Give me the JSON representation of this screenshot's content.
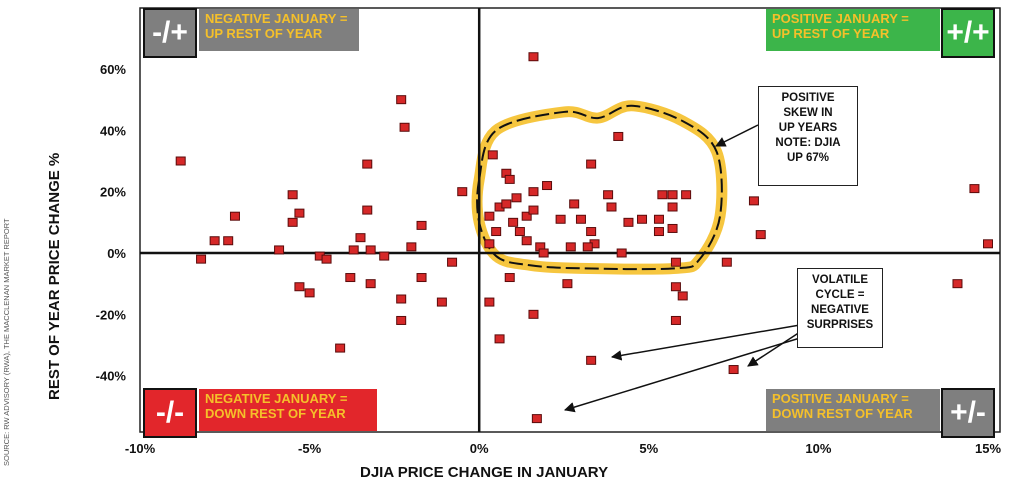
{
  "source_text": "SOURCE: RW ADVISORY (RWA), THE MACCLENAN MARKET REPORT",
  "colors": {
    "marker_fill": "#d62828",
    "marker_stroke": "#5a0c0c",
    "highlight": "#f5c02a",
    "green": "#3cb54a",
    "gray": "#7f7f7f",
    "red": "#e2262b",
    "yellow_text": "#f5c02a"
  },
  "quadrants": {
    "top_left": {
      "badge": "-/+",
      "label": "NEGATIVE JANUARY =\nUP REST OF YEAR"
    },
    "top_right": {
      "badge": "+/+",
      "label": "POSITIVE JANUARY =\nUP REST OF YEAR"
    },
    "bottom_left": {
      "badge": "-/-",
      "label": "NEGATIVE JANUARY =\nDOWN REST OF YEAR"
    },
    "bottom_right": {
      "badge": "+/-",
      "label": "POSITIVE JANUARY =\nDOWN REST OF YEAR"
    }
  },
  "annotations": {
    "skew": "POSITIVE\nSKEW IN\nUP YEARS\nNOTE: DJIA\nUP 67%",
    "volatile": "VOLATILE\nCYCLE =\nNEGATIVE\nSURPRISES"
  },
  "chart_data": {
    "type": "scatter",
    "xlabel": "DJIA PRICE CHANGE IN JANUARY",
    "ylabel": "REST OF YEAR PRICE CHANGE %",
    "xlim": [
      -10,
      15
    ],
    "ylim": [
      -55,
      72
    ],
    "x_ticks": [
      {
        "value": -10,
        "label": "-10%"
      },
      {
        "value": -5,
        "label": "-5%"
      },
      {
        "value": 0,
        "label": "0%"
      },
      {
        "value": 5,
        "label": "5%"
      },
      {
        "value": 10,
        "label": "10%"
      },
      {
        "value": 15,
        "label": "15%"
      }
    ],
    "y_ticks": [
      {
        "value": 60,
        "label": "60%"
      },
      {
        "value": 40,
        "label": "40%"
      },
      {
        "value": 20,
        "label": "20%"
      },
      {
        "value": 0,
        "label": "0%"
      },
      {
        "value": -20,
        "label": "-20%"
      },
      {
        "value": -40,
        "label": "-40%"
      }
    ],
    "grid": false,
    "points": [
      [
        1.6,
        64
      ],
      [
        -2.3,
        50
      ],
      [
        -2.2,
        41
      ],
      [
        -8.8,
        30
      ],
      [
        -3.3,
        29
      ],
      [
        0.4,
        32
      ],
      [
        0.8,
        26
      ],
      [
        0.9,
        24
      ],
      [
        3.3,
        29
      ],
      [
        4.1,
        38
      ],
      [
        -5.5,
        19
      ],
      [
        -0.5,
        20
      ],
      [
        1.1,
        18
      ],
      [
        1.6,
        20
      ],
      [
        2.0,
        22
      ],
      [
        3.8,
        19
      ],
      [
        5.4,
        19
      ],
      [
        5.7,
        19
      ],
      [
        6.1,
        19
      ],
      [
        0.6,
        15
      ],
      [
        0.8,
        16
      ],
      [
        1.4,
        12
      ],
      [
        1.6,
        14
      ],
      [
        2.8,
        16
      ],
      [
        3.9,
        15
      ],
      [
        0.3,
        12
      ],
      [
        4.4,
        10
      ],
      [
        4.8,
        11
      ],
      [
        5.3,
        11
      ],
      [
        5.7,
        15
      ],
      [
        8.1,
        17
      ],
      [
        14.6,
        21
      ],
      [
        -7.2,
        12
      ],
      [
        -5.3,
        13
      ],
      [
        -5.5,
        10
      ],
      [
        -3.3,
        14
      ],
      [
        -1.7,
        9
      ],
      [
        1.0,
        10
      ],
      [
        2.4,
        11
      ],
      [
        3.0,
        11
      ],
      [
        3.3,
        7
      ],
      [
        1.2,
        7
      ],
      [
        5.3,
        7
      ],
      [
        5.7,
        8
      ],
      [
        0.5,
        7
      ],
      [
        -3.7,
        1
      ],
      [
        -3.2,
        1
      ],
      [
        -2.0,
        2
      ],
      [
        -3.5,
        5
      ],
      [
        -7.8,
        4
      ],
      [
        -7.4,
        4
      ],
      [
        -8.2,
        -2
      ],
      [
        -5.9,
        1
      ],
      [
        0.3,
        3
      ],
      [
        1.4,
        4
      ],
      [
        1.8,
        2
      ],
      [
        1.9,
        0
      ],
      [
        2.7,
        2
      ],
      [
        3.4,
        3
      ],
      [
        3.2,
        2
      ],
      [
        4.2,
        0
      ],
      [
        8.3,
        6
      ],
      [
        15.0,
        3
      ],
      [
        -2.8,
        -1
      ],
      [
        -4.7,
        -1
      ],
      [
        -0.8,
        -3
      ],
      [
        -5.3,
        -11
      ],
      [
        -5.0,
        -13
      ],
      [
        -4.5,
        -2
      ],
      [
        -4.1,
        -31
      ],
      [
        -3.8,
        -8
      ],
      [
        -3.2,
        -10
      ],
      [
        -2.3,
        -15
      ],
      [
        -2.3,
        -22
      ],
      [
        -1.7,
        -8
      ],
      [
        -1.1,
        -16
      ],
      [
        0.9,
        -8
      ],
      [
        2.6,
        -10
      ],
      [
        5.8,
        -11
      ],
      [
        6.0,
        -14
      ],
      [
        5.8,
        -22
      ],
      [
        0.3,
        -16
      ],
      [
        0.6,
        -28
      ],
      [
        1.6,
        -20
      ],
      [
        3.3,
        -35
      ],
      [
        7.5,
        -38
      ],
      [
        1.7,
        -54
      ],
      [
        7.3,
        -3
      ],
      [
        14.1,
        -10
      ],
      [
        5.8,
        -3
      ]
    ]
  }
}
